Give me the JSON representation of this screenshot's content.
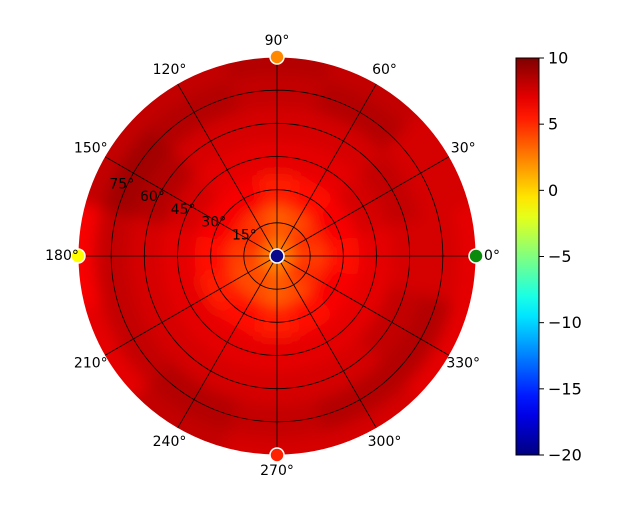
{
  "chart_data": {
    "type": "heatmap",
    "projection": "polar",
    "grid": true,
    "theta_ticks": [
      "0°",
      "30°",
      "60°",
      "90°",
      "120°",
      "150°",
      "180°",
      "210°",
      "240°",
      "270°",
      "300°",
      "330°"
    ],
    "theta_tick_values": [
      0,
      30,
      60,
      90,
      120,
      150,
      180,
      210,
      240,
      270,
      300,
      330
    ],
    "radial_ticks": [
      "15°",
      "30°",
      "45°",
      "60°",
      "75°"
    ],
    "radial_tick_values": [
      15,
      30,
      45,
      60,
      75
    ],
    "radial_range": [
      0,
      90
    ],
    "colorbar": {
      "colormap": "jet",
      "range": [
        -20,
        10
      ],
      "ticks": [
        "10",
        "5",
        "0",
        "−5",
        "−10",
        "−15",
        "−20"
      ],
      "tick_values": [
        10,
        5,
        0,
        -5,
        -10,
        -15,
        -20
      ]
    },
    "markers": [
      {
        "theta": 0,
        "r": 90,
        "color": "#0a8a0a"
      },
      {
        "theta": 90,
        "r": 90,
        "color": "#ff8800"
      },
      {
        "theta": 180,
        "r": 90,
        "color": "#ffff00"
      },
      {
        "theta": 270,
        "r": 90,
        "color": "#ff2200"
      },
      {
        "theta": 0,
        "r": 0,
        "color": "#0a0a8c"
      }
    ],
    "field": {
      "theta": [
        0,
        30,
        60,
        90,
        120,
        150,
        180,
        210,
        240,
        270,
        300,
        330
      ],
      "r": [
        0,
        15,
        30,
        45,
        60,
        75,
        90
      ],
      "values": [
        [
          1.5,
          4.5,
          6.0,
          7.0,
          7.5,
          7.5,
          7.0
        ],
        [
          3.0,
          5.0,
          6.5,
          7.5,
          8.0,
          7.5,
          7.5
        ],
        [
          2.5,
          4.0,
          6.0,
          7.0,
          7.5,
          8.5,
          8.0
        ],
        [
          2.0,
          3.5,
          5.5,
          7.0,
          7.5,
          8.0,
          8.5
        ],
        [
          2.5,
          4.5,
          6.5,
          7.0,
          7.5,
          8.5,
          8.0
        ],
        [
          3.0,
          5.0,
          6.5,
          7.5,
          8.5,
          9.0,
          8.0
        ],
        [
          2.5,
          4.5,
          6.0,
          7.0,
          7.5,
          8.0,
          6.5
        ],
        [
          2.0,
          4.0,
          5.5,
          7.0,
          7.5,
          8.0,
          7.0
        ],
        [
          2.5,
          4.0,
          6.0,
          7.0,
          7.5,
          8.5,
          8.0
        ],
        [
          2.0,
          3.5,
          5.5,
          7.0,
          7.5,
          8.0,
          7.5
        ],
        [
          2.5,
          4.0,
          6.0,
          7.0,
          7.5,
          8.5,
          7.5
        ],
        [
          3.0,
          5.0,
          6.5,
          7.0,
          8.0,
          8.5,
          7.0
        ]
      ]
    }
  }
}
